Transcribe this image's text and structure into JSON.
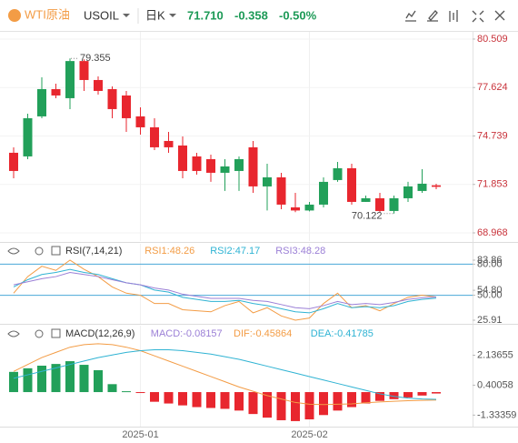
{
  "header": {
    "name": "WTI原油",
    "symbol": "USOIL",
    "period": "日K",
    "price": "71.710",
    "change": "-0.358",
    "change_pct": "-0.50%"
  },
  "chart_data": [
    {
      "type": "candlestick",
      "categories": [
        null,
        null,
        null,
        null,
        null,
        null,
        null,
        null,
        null,
        "2025-01",
        null,
        null,
        null,
        null,
        null,
        null,
        null,
        null,
        null,
        null,
        null,
        "2025-02",
        null,
        null,
        null,
        null,
        null,
        null,
        null,
        null,
        null
      ],
      "open": [
        73.738,
        73.521,
        75.905,
        77.53,
        76.988,
        79.2,
        78.071,
        77.53,
        77.15,
        75.905,
        75.254,
        74.442,
        74.171,
        73.521,
        73.359,
        72.546,
        72.654,
        74.063,
        71.734,
        72.275,
        70.487,
        70.3,
        70.65,
        72.113,
        72.817,
        70.812,
        71.029,
        70.271,
        71.029,
        71.463,
        71.8
      ],
      "high": [
        74.063,
        76.067,
        78.234,
        77.855,
        79.355,
        79.3,
        78.288,
        77.692,
        77.421,
        76.446,
        75.796,
        74.984,
        74.713,
        73.738,
        73.629,
        73.359,
        73.521,
        74.442,
        73.088,
        72.546,
        71.354,
        70.812,
        72.275,
        73.196,
        73.088,
        71.192,
        71.354,
        71.192,
        72.005,
        72.763,
        71.896
      ],
      "low": [
        72.221,
        73.359,
        75.796,
        76.988,
        76.338,
        77.421,
        77.205,
        75.796,
        74.984,
        74.821,
        73.9,
        73.738,
        72.221,
        72.438,
        72.005,
        71.463,
        71.463,
        71.354,
        70.3,
        70.379,
        70.2,
        70.25,
        70.487,
        72.005,
        70.65,
        70.812,
        70.2,
        70.122,
        70.812,
        71.354,
        71.571
      ],
      "close": [
        72.654,
        75.796,
        77.53,
        77.15,
        79.2,
        78.071,
        77.421,
        76.338,
        75.796,
        75.254,
        74.063,
        74.063,
        72.654,
        72.654,
        72.546,
        72.925,
        73.359,
        71.734,
        72.275,
        70.65,
        70.3,
        70.65,
        72.005,
        72.817,
        70.812,
        71.029,
        70.271,
        71.029,
        71.734,
        71.896,
        71.71
      ],
      "up_color": "#22a05a",
      "down_color": "#e8262e",
      "ylim": [
        68.48,
        80.94
      ],
      "yticks": [
        68.968,
        71.853,
        74.739,
        77.624,
        80.509
      ],
      "tick_color": "#c8323a",
      "high_label": "79.355",
      "low_label": "70.122"
    },
    {
      "type": "line",
      "title": "RSI(7,14,21)",
      "series": [
        {
          "name": "RSI1:48.26",
          "color": "#f39c45",
          "values": [
            52,
            68,
            78,
            74,
            83.86,
            75,
            68,
            58,
            52,
            50,
            42,
            42,
            36,
            35,
            34,
            40,
            44,
            33,
            38,
            30,
            25.91,
            28,
            42,
            52,
            38,
            40,
            35,
            42,
            48,
            50,
            48.26
          ]
        },
        {
          "name": "RSI2:47.17",
          "color": "#2fb3d3",
          "values": [
            58,
            65,
            70,
            72,
            75,
            72,
            70,
            66,
            62,
            60,
            55,
            53,
            48,
            46,
            44,
            44,
            45,
            42,
            40,
            37,
            34,
            33,
            37,
            42,
            38,
            39,
            38,
            40,
            44,
            46,
            47.17
          ]
        },
        {
          "name": "RSI3:48.28",
          "color": "#9b7fd6",
          "values": [
            60,
            63,
            66,
            68,
            72,
            70,
            68,
            65,
            62,
            60,
            57,
            55,
            51,
            49,
            47,
            47,
            47,
            45,
            44,
            41,
            38,
            37,
            40,
            44,
            41,
            42,
            41,
            43,
            46,
            47.5,
            48.28
          ]
        }
      ],
      "ylim": [
        25.91,
        83.86
      ],
      "yticks": [
        25.91,
        {
          "value": 50,
          "label": "50.00"
        },
        {
          "value": 54.8,
          "label": "54.80"
        },
        {
          "value": 80,
          "label": "80.00"
        },
        83.86
      ],
      "levels": [
        80,
        50
      ],
      "level_color": "#4aa8d8"
    },
    {
      "type": "macd",
      "title": "MACD(12,26,9)",
      "series": [
        {
          "name": "MACD:-0.08157",
          "color": "#e8262e",
          "up_color": "#22a05a",
          "values": [
            1.17,
            1.38,
            1.53,
            1.63,
            1.79,
            1.58,
            1.27,
            0.46,
            0.05,
            -0.05,
            -0.56,
            -0.66,
            -0.77,
            -0.87,
            -0.92,
            -0.97,
            -1.07,
            -1.27,
            -1.48,
            -1.63,
            -1.68,
            -1.58,
            -1.33,
            -1.07,
            -0.87,
            -0.66,
            -0.51,
            -0.41,
            -0.31,
            -0.2,
            -0.08157
          ]
        },
        {
          "name": "DIF:-0.45864",
          "color": "#f39c45",
          "values": [
            1.2,
            1.6,
            2.0,
            2.3,
            2.6,
            2.75,
            2.8,
            2.75,
            2.6,
            2.4,
            2.1,
            1.8,
            1.5,
            1.2,
            0.9,
            0.6,
            0.3,
            0.05,
            -0.2,
            -0.4,
            -0.6,
            -0.7,
            -0.72,
            -0.7,
            -0.68,
            -0.62,
            -0.57,
            -0.53,
            -0.5,
            -0.48,
            -0.45864
          ]
        },
        {
          "name": "DEA:-0.41785",
          "color": "#2fb3d3",
          "values": [
            0.8,
            1.0,
            1.2,
            1.4,
            1.6,
            1.8,
            2.0,
            2.15,
            2.3,
            2.4,
            2.45,
            2.45,
            2.4,
            2.3,
            2.2,
            2.05,
            1.9,
            1.7,
            1.5,
            1.3,
            1.1,
            0.9,
            0.7,
            0.5,
            0.3,
            0.1,
            -0.1,
            -0.25,
            -0.35,
            -0.4,
            -0.41785
          ]
        }
      ],
      "ylim": [
        -1.895,
        2.953
      ],
      "yticks": [
        -1.33359,
        0.40058,
        2.13655
      ]
    }
  ]
}
